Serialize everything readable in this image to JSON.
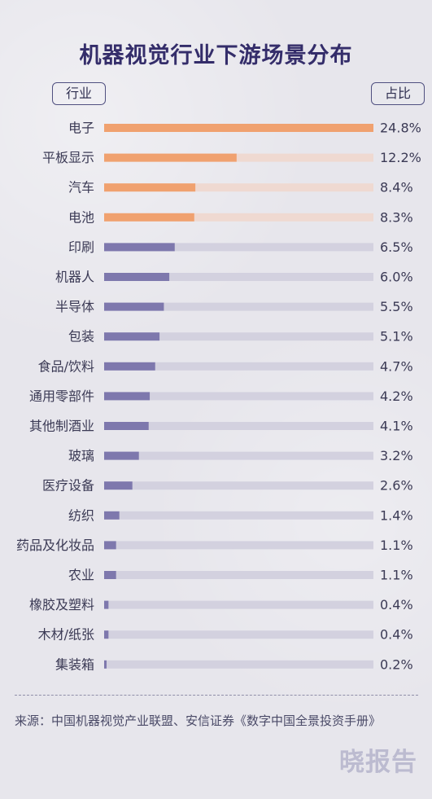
{
  "title": "机器视觉行业下游场景分布",
  "header": {
    "left": "行业",
    "right": "占比"
  },
  "source": "来源：中国机器视觉产业联盟、安信证券《数字中国全景投资手册》",
  "watermark": "晓报告",
  "colors": {
    "highlight": "#f0a16f",
    "highlight_track": "#efd9d1",
    "normal": "#7e78ad",
    "normal_track": "#d3d1df",
    "text": "#3b3a55"
  },
  "chart_data": {
    "type": "bar",
    "orientation": "horizontal",
    "categories": [
      "电子",
      "平板显示",
      "汽车",
      "电池",
      "印刷",
      "机器人",
      "半导体",
      "包装",
      "食品/饮料",
      "通用零部件",
      "其他制酒业",
      "玻璃",
      "医疗设备",
      "纺织",
      "药品及化妆品",
      "农业",
      "橡胶及塑料",
      "木材/纸张",
      "集装箱"
    ],
    "values": [
      24.8,
      12.2,
      8.4,
      8.3,
      6.5,
      6.0,
      5.5,
      5.1,
      4.7,
      4.2,
      4.1,
      3.2,
      2.6,
      1.4,
      1.1,
      1.1,
      0.4,
      0.4,
      0.2
    ],
    "labels": [
      "24.8%",
      "12.2%",
      "8.4%",
      "8.3%",
      "6.5%",
      "6.0%",
      "5.5%",
      "5.1%",
      "4.7%",
      "4.2%",
      "4.1%",
      "3.2%",
      "2.6%",
      "1.4%",
      "1.1%",
      "1.1%",
      "0.4%",
      "0.4%",
      "0.2%"
    ],
    "highlighted_count": 4,
    "xlim": [
      0,
      24.8
    ]
  }
}
